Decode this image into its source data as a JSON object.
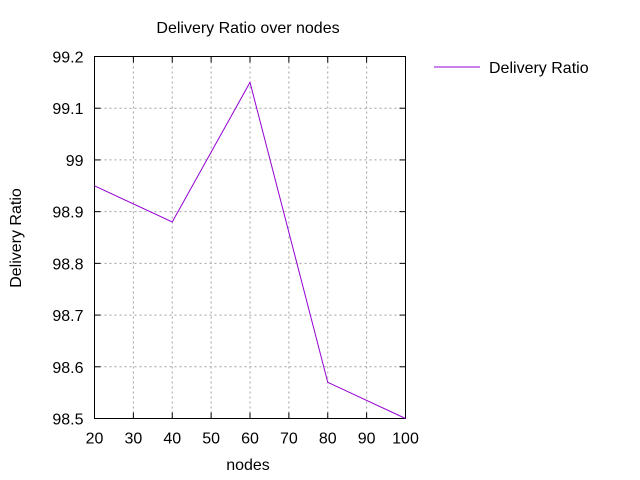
{
  "chart_data": {
    "type": "line",
    "title": "Delivery Ratio over nodes",
    "xlabel": "nodes",
    "ylabel": "Delivery Ratio",
    "xlim": [
      20,
      100
    ],
    "ylim": [
      98.5,
      99.2
    ],
    "x_ticks": [
      "20",
      "30",
      "40",
      "50",
      "60",
      "70",
      "80",
      "90",
      "100"
    ],
    "y_ticks": [
      "98.5",
      "98.6",
      "98.7",
      "98.8",
      "98.9",
      "99",
      "99.1",
      "99.2"
    ],
    "grid": true,
    "legend_position": "top-right outside",
    "series": [
      {
        "name": "Delivery Ratio",
        "color": "#9400d3",
        "x": [
          20,
          40,
          60,
          80,
          100
        ],
        "y": [
          98.95,
          98.88,
          99.15,
          98.57,
          98.5
        ]
      }
    ]
  }
}
